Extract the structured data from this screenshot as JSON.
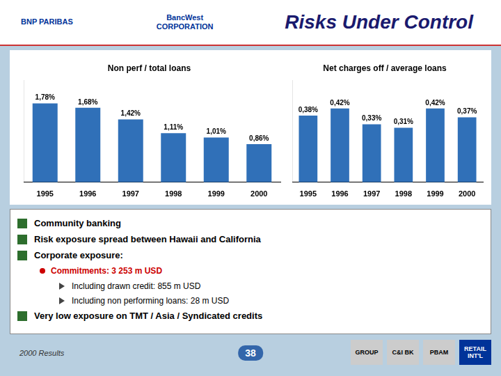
{
  "title": "Risks Under Control",
  "logos": [
    "BNP PARIBAS",
    "BancWest\nCORPORATION"
  ],
  "chart_data": [
    {
      "type": "bar",
      "title": "Non perf / total loans",
      "categories": [
        "1995",
        "1996",
        "1997",
        "1998",
        "1999",
        "2000"
      ],
      "values": [
        1.78,
        1.68,
        1.42,
        1.11,
        1.01,
        0.86
      ],
      "value_labels": [
        "1,78%",
        "1,68%",
        "1,42%",
        "1,11%",
        "1,01%",
        "0,86%"
      ],
      "color": "#3070b8",
      "ylim": [
        0,
        2.3
      ],
      "grid": false,
      "data_labels": true,
      "tick_labels": "x"
    },
    {
      "type": "bar",
      "title": "Net charges off / average loans",
      "categories": [
        "1995",
        "1996",
        "1997",
        "1998",
        "1999",
        "2000"
      ],
      "values": [
        0.38,
        0.42,
        0.33,
        0.31,
        0.42,
        0.37
      ],
      "value_labels": [
        "0,38%",
        "0,42%",
        "0,33%",
        "0,31%",
        "0,42%",
        "0,37%"
      ],
      "color": "#3070b8",
      "ylim": [
        0,
        0.58
      ],
      "grid": false,
      "data_labels": true,
      "tick_labels": "x"
    }
  ],
  "bullets": [
    {
      "text": "Community banking"
    },
    {
      "text": "Risk exposure spread between Hawaii and California"
    },
    {
      "text": "Corporate exposure:",
      "items": [
        {
          "text": "Commitments: 3 253 m USD",
          "color": "#cc0000",
          "items": [
            "Including drawn credit: 855 m USD",
            "Including non performing loans: 28 m USD"
          ]
        }
      ]
    },
    {
      "text": "Very low exposure on TMT / Asia / Syndicated credits"
    }
  ],
  "footer": {
    "left": "2000 Results",
    "page": "38",
    "tabs": [
      "GROUP",
      "C&I BK",
      "PBAM",
      "RETAIL\nINT'L"
    ]
  }
}
